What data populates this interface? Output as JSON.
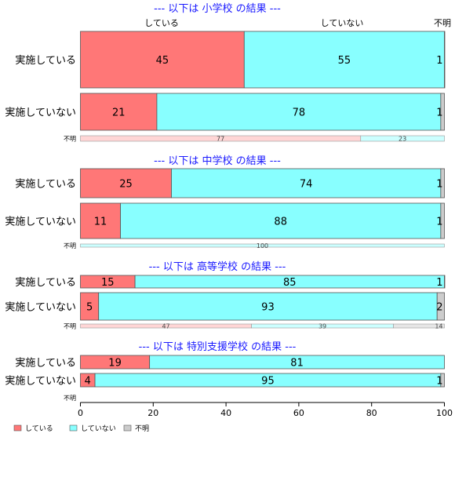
{
  "chart_data": {
    "type": "bar",
    "orientation": "horizontal",
    "stacked": true,
    "percent": true,
    "xlim": [
      0,
      100
    ],
    "xticks": [
      "0",
      "20",
      "40",
      "60",
      "80",
      "100"
    ],
    "header_labels": [
      "している",
      "していない",
      "不明"
    ],
    "legend": {
      "placement": "bottom-left",
      "entries": [
        {
          "name": "している",
          "color": "#ff7777"
        },
        {
          "name": "していない",
          "color": "#88ffff"
        },
        {
          "name": "不明",
          "color": "#cccccc"
        }
      ]
    },
    "series_colors": [
      "#ff7777",
      "#88ffff",
      "#cccccc"
    ],
    "small_colors": [
      "#ffd6d6",
      "#ccffff",
      "#e6e6e6"
    ],
    "panels": [
      {
        "title": "--- 以下は 小学校 の結果 ---",
        "rows": [
          {
            "category": "実施している",
            "values": [
              45,
              55,
              1
            ]
          },
          {
            "category": "実施していない",
            "values": [
              21,
              78,
              1
            ]
          },
          {
            "category": "不明",
            "values": [
              77,
              23,
              0
            ]
          }
        ]
      },
      {
        "title": "--- 以下は 中学校 の結果 ---",
        "rows": [
          {
            "category": "実施している",
            "values": [
              25,
              74,
              1
            ]
          },
          {
            "category": "実施していない",
            "values": [
              11,
              88,
              1
            ]
          },
          {
            "category": "不明",
            "values": [
              0,
              100,
              0
            ]
          }
        ]
      },
      {
        "title": "--- 以下は 高等学校 の結果 ---",
        "rows": [
          {
            "category": "実施している",
            "values": [
              15,
              85,
              1
            ]
          },
          {
            "category": "実施していない",
            "values": [
              5,
              93,
              2
            ]
          },
          {
            "category": "不明",
            "values": [
              47,
              39,
              14
            ]
          }
        ]
      },
      {
        "title": "--- 以下は 特別支援学校 の結果 ---",
        "rows": [
          {
            "category": "実施している",
            "values": [
              19,
              81,
              0
            ]
          },
          {
            "category": "実施していない",
            "values": [
              4,
              95,
              1
            ]
          },
          {
            "category": "不明",
            "values": []
          }
        ]
      }
    ]
  }
}
